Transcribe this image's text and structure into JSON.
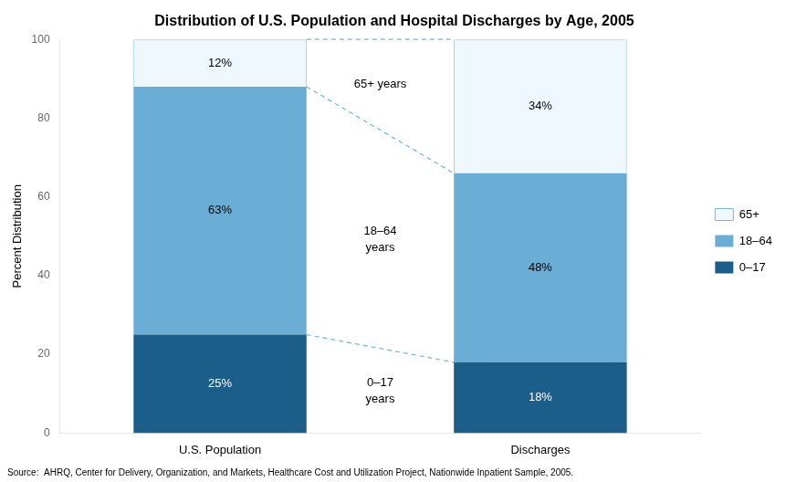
{
  "chart_data": {
    "type": "bar",
    "title": "Distribution of U.S. Population and Hospital Discharges by Age, 2005",
    "categories": [
      "U.S. Population",
      "Discharges"
    ],
    "series": [
      {
        "name": "0–17",
        "color": "#1b5e8a",
        "values": [
          25,
          18
        ],
        "value_labels": [
          "25%",
          "18%"
        ]
      },
      {
        "name": "18–64",
        "color": "#6aaed6",
        "values": [
          63,
          48
        ],
        "value_labels": [
          "63%",
          "48%"
        ]
      },
      {
        "name": "65+",
        "color": "#f0f8ff",
        "values": [
          12,
          34
        ],
        "value_labels": [
          "12%",
          "34%"
        ]
      }
    ],
    "annotations": [
      "0–17\nyears",
      "18–64\nyears",
      "65+ years"
    ],
    "ylabel": "Percent Distribution",
    "ylim": [
      0,
      100
    ],
    "yticks": [
      0,
      20,
      40,
      60,
      80,
      100
    ],
    "stacked": true,
    "data_labels": true,
    "grid": false,
    "legend": "right",
    "source": "Source:  AHRQ, Center for Delivery, Organization, and Markets, Healthcare Cost and Utilization Project, Nationwide Inpatient Sample, 2005."
  }
}
